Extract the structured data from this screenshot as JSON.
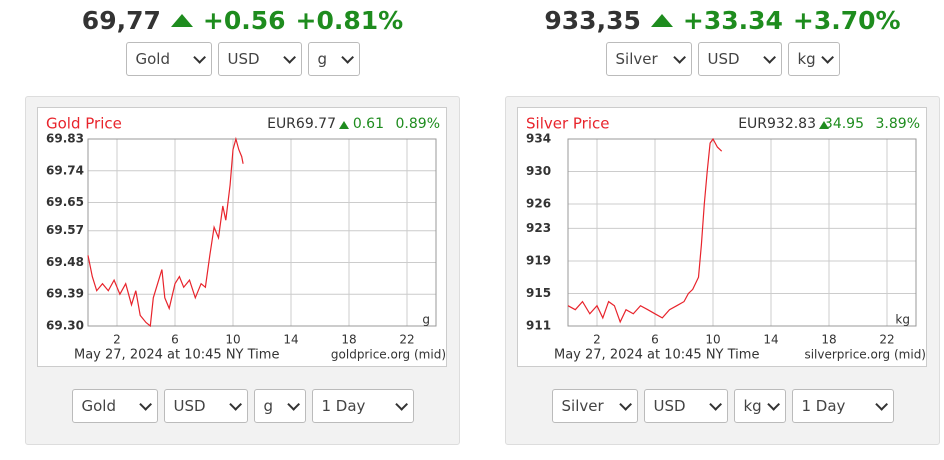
{
  "panels": [
    {
      "price": "69,77",
      "change": "+0.56",
      "change_pct": "+0.81%",
      "top_selects": [
        "Gold",
        "USD",
        "g"
      ],
      "bottom_selects": [
        "Gold",
        "USD",
        "g",
        "1 Day"
      ]
    },
    {
      "price": "933,35",
      "change": "+33.34",
      "change_pct": "+3.70%",
      "top_selects": [
        "Silver",
        "USD",
        "kg"
      ],
      "bottom_selects": [
        "Silver",
        "USD",
        "kg",
        "1 Day"
      ]
    }
  ],
  "chart_data": [
    {
      "type": "line",
      "title": "Gold Price",
      "quote": "EUR69.77",
      "change": "0.61",
      "change_pct": "0.89%",
      "unit": "g",
      "footer": "May 27, 2024 at 10:45 NY Time",
      "source": "goldprice.org (mid)",
      "xlim": [
        0,
        24
      ],
      "xticks": [
        2,
        6,
        10,
        14,
        18,
        22
      ],
      "ylim": [
        69.3,
        69.83
      ],
      "yticks": [
        {
          "value": 69.3,
          "label": "69.30"
        },
        69.39,
        69.48,
        69.57,
        69.65,
        69.74,
        69.83
      ],
      "grid": true,
      "x": [
        0,
        0.3,
        0.6,
        1,
        1.4,
        1.8,
        2.2,
        2.6,
        3,
        3.3,
        3.6,
        4,
        4.3,
        4.5,
        4.8,
        5.1,
        5.3,
        5.6,
        6,
        6.3,
        6.6,
        7,
        7.4,
        7.8,
        8.1,
        8.4,
        8.7,
        9,
        9.3,
        9.5,
        9.8,
        10,
        10.2,
        10.4,
        10.6,
        10.7
      ],
      "series": [
        {
          "color": "#e8242c",
          "values": [
            69.5,
            69.44,
            69.4,
            69.42,
            69.4,
            69.43,
            69.39,
            69.42,
            69.36,
            69.4,
            69.33,
            69.31,
            69.3,
            69.38,
            69.42,
            69.46,
            69.38,
            69.35,
            69.42,
            69.44,
            69.41,
            69.43,
            69.38,
            69.42,
            69.41,
            69.5,
            69.58,
            69.55,
            69.64,
            69.6,
            69.7,
            69.8,
            69.83,
            69.8,
            69.78,
            69.76
          ]
        }
      ]
    },
    {
      "type": "line",
      "title": "Silver Price",
      "quote": "EUR932.83",
      "change": "34.95",
      "change_pct": "3.89%",
      "unit": "kg",
      "footer": "May 27, 2024 at 10:45 NY Time",
      "source": "silverprice.org (mid)",
      "xlim": [
        0,
        24
      ],
      "xticks": [
        2,
        6,
        10,
        14,
        18,
        22
      ],
      "ylim": [
        911,
        934
      ],
      "yticks": [
        911,
        915,
        919,
        923,
        926,
        930,
        934
      ],
      "grid": true,
      "x": [
        0,
        0.5,
        1,
        1.5,
        2,
        2.4,
        2.8,
        3.2,
        3.6,
        4,
        4.5,
        5,
        5.5,
        6,
        6.5,
        7,
        7.5,
        8,
        8.3,
        8.6,
        9,
        9.2,
        9.4,
        9.6,
        9.8,
        10,
        10.3,
        10.6
      ],
      "series": [
        {
          "color": "#e8242c",
          "values": [
            913.5,
            913,
            914,
            912.5,
            913.5,
            912,
            914,
            913.5,
            911.5,
            913,
            912.5,
            913.5,
            913,
            912.5,
            912,
            913,
            913.5,
            914,
            915,
            915.5,
            917,
            921,
            926,
            930,
            933.5,
            934,
            933,
            932.5
          ]
        }
      ]
    }
  ]
}
